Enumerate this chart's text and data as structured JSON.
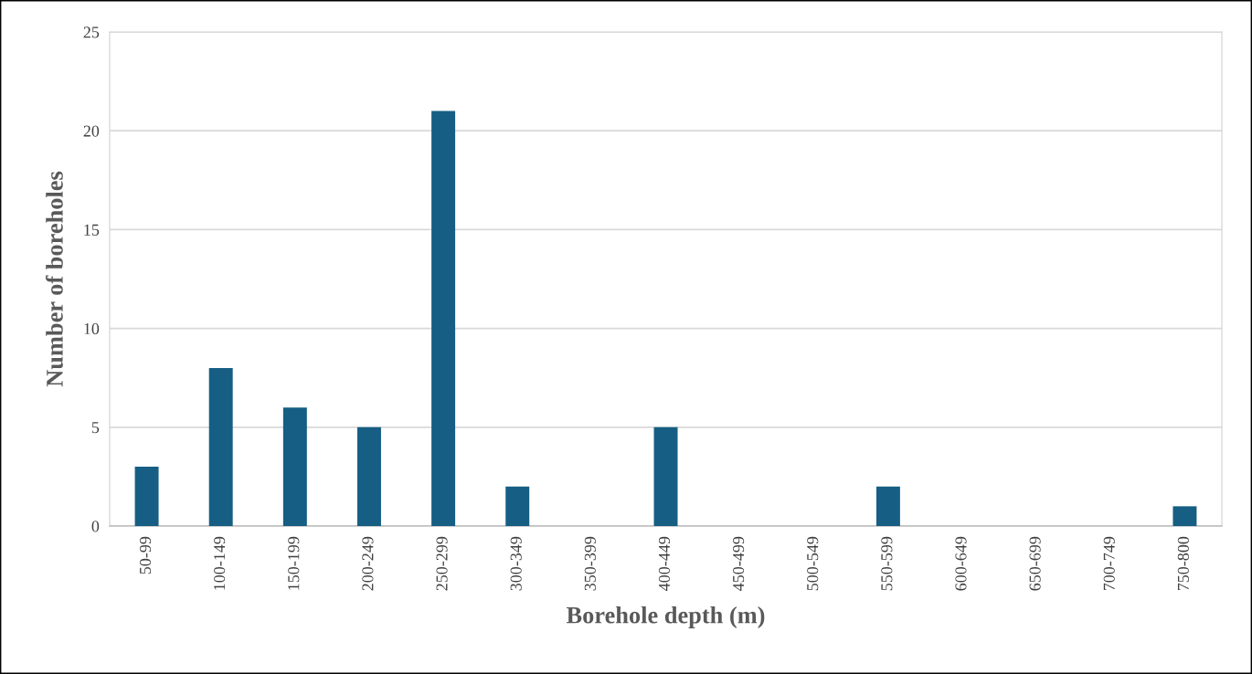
{
  "chart_data": {
    "type": "bar",
    "xlabel": "Borehole depth (m)",
    "ylabel": "Number of boreholes",
    "categories": [
      "50-99",
      "100-149",
      "150-199",
      "200-249",
      "250-299",
      "300-349",
      "350-399",
      "400-449",
      "450-499",
      "500-549",
      "550-599",
      "600-649",
      "650-699",
      "700-749",
      "750-800"
    ],
    "values": [
      3,
      8,
      6,
      5,
      21,
      2,
      0,
      5,
      0,
      0,
      2,
      0,
      0,
      0,
      1
    ],
    "color": "#165e83",
    "ylim": [
      0,
      25
    ],
    "yticks": [
      0,
      5,
      10,
      15,
      20,
      25
    ],
    "grid": "y"
  }
}
